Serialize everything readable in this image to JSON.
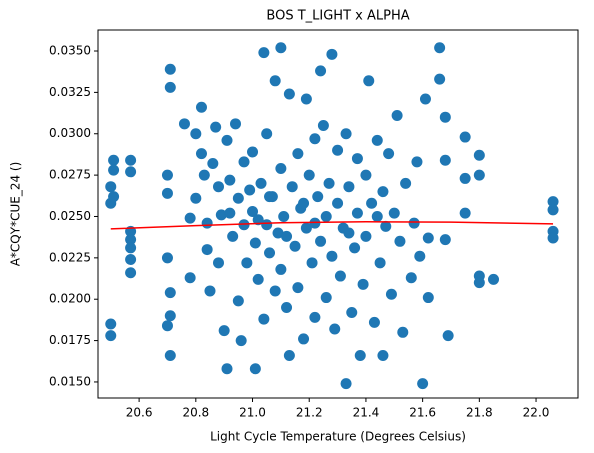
{
  "chart_data": {
    "type": "scatter",
    "title": "BOS T_LIGHT x ALPHA",
    "x_label": "Light Cycle Temperature (Degrees Celsius)",
    "y_label": "A*CQY*CUE_24 ()",
    "xlim": [
      20.455,
      22.148
    ],
    "ylim": [
      0.01403,
      0.03627
    ],
    "xticks": [
      20.6,
      20.8,
      {
        "value": 21.0,
        "label": "21.0"
      },
      21.2,
      21.4,
      21.6,
      21.8,
      {
        "value": 22.0,
        "label": "22.0"
      }
    ],
    "yticks": [
      {
        "value": 0.015,
        "label": "0.0150"
      },
      {
        "value": 0.0175,
        "label": "0.0175"
      },
      {
        "value": 0.02,
        "label": "0.0200"
      },
      {
        "value": 0.0225,
        "label": "0.0225"
      },
      {
        "value": 0.025,
        "label": "0.0250"
      },
      {
        "value": 0.0275,
        "label": "0.0275"
      },
      {
        "value": 0.03,
        "label": "0.0300"
      },
      {
        "value": 0.0325,
        "label": "0.0325"
      },
      {
        "value": 0.035,
        "label": "0.0350"
      }
    ],
    "grid": false,
    "series": [
      {
        "type": "scatter",
        "color": "#1f77b4",
        "x": [
          20.5,
          20.5,
          20.5,
          20.5,
          20.51,
          20.51,
          20.51,
          20.57,
          20.57,
          20.57,
          20.57,
          20.57,
          20.57,
          20.57,
          20.7,
          20.7,
          20.7,
          20.7,
          20.71,
          20.71,
          20.71,
          20.71,
          20.71,
          20.76,
          20.78,
          20.78,
          20.8,
          20.8,
          20.82,
          20.82,
          20.83,
          20.84,
          20.84,
          20.85,
          20.86,
          20.87,
          20.88,
          20.88,
          20.89,
          20.9,
          20.91,
          20.91,
          20.92,
          20.93,
          20.94,
          20.95,
          20.95,
          20.96,
          20.97,
          20.97,
          20.98,
          20.99,
          21.0,
          21.0,
          21.01,
          21.01,
          21.02,
          21.03,
          21.04,
          21.04,
          21.05,
          21.05,
          21.06,
          21.07,
          21.08,
          21.08,
          21.09,
          21.1,
          21.1,
          21.1,
          21.11,
          21.12,
          21.13,
          21.13,
          21.14,
          21.15,
          21.16,
          21.16,
          21.17,
          21.18,
          21.19,
          21.19,
          21.2,
          21.21,
          21.22,
          21.22,
          21.23,
          21.24,
          21.24,
          21.25,
          21.26,
          21.26,
          21.27,
          21.28,
          21.28,
          21.29,
          21.3,
          21.3,
          21.31,
          21.32,
          21.33,
          21.33,
          21.34,
          21.35,
          21.36,
          21.37,
          21.37,
          21.38,
          21.39,
          21.4,
          21.4,
          21.41,
          21.42,
          21.43,
          21.44,
          21.45,
          21.46,
          21.46,
          21.47,
          21.48,
          21.49,
          21.5,
          21.51,
          21.52,
          21.53,
          21.54,
          21.56,
          21.57,
          21.58,
          21.59,
          21.6,
          21.61,
          21.62,
          21.62,
          21.66,
          21.66,
          21.68,
          21.68,
          21.68,
          21.69,
          21.75,
          21.75,
          21.75,
          21.8,
          21.8,
          21.8,
          21.8,
          21.85,
          22.06,
          22.06,
          22.06,
          22.06,
          21.02,
          21.06,
          21.12,
          21.18,
          21.22,
          21.34,
          21.44,
          20.92
        ],
        "values": [
          0.0268,
          0.0258,
          0.0185,
          0.0178,
          0.0284,
          0.0278,
          0.0262,
          0.0284,
          0.0277,
          0.0241,
          0.0236,
          0.0231,
          0.0224,
          0.0216,
          0.0275,
          0.0264,
          0.0225,
          0.0184,
          0.0339,
          0.0328,
          0.0204,
          0.019,
          0.0166,
          0.0306,
          0.0249,
          0.0213,
          0.03,
          0.0261,
          0.0316,
          0.0288,
          0.0275,
          0.0246,
          0.023,
          0.0205,
          0.0282,
          0.0304,
          0.0268,
          0.0222,
          0.0251,
          0.0181,
          0.0158,
          0.0296,
          0.0272,
          0.0238,
          0.0306,
          0.0261,
          0.0199,
          0.0175,
          0.0283,
          0.0245,
          0.0222,
          0.0266,
          0.0289,
          0.0253,
          0.0158,
          0.0234,
          0.0212,
          0.027,
          0.0349,
          0.0188,
          0.03,
          0.0245,
          0.0228,
          0.0262,
          0.0332,
          0.0205,
          0.024,
          0.0352,
          0.0279,
          0.0218,
          0.025,
          0.0195,
          0.0166,
          0.0324,
          0.0268,
          0.0232,
          0.0288,
          0.0207,
          0.0255,
          0.0176,
          0.0321,
          0.0243,
          0.0275,
          0.0222,
          0.0297,
          0.0189,
          0.0262,
          0.0338,
          0.0235,
          0.0305,
          0.025,
          0.0201,
          0.027,
          0.0348,
          0.0226,
          0.0182,
          0.0258,
          0.029,
          0.0214,
          0.0243,
          0.0149,
          0.03,
          0.0268,
          0.0192,
          0.0231,
          0.0285,
          0.0252,
          0.0166,
          0.0209,
          0.0275,
          0.0238,
          0.0332,
          0.0258,
          0.0186,
          0.0296,
          0.0222,
          0.0166,
          0.0265,
          0.0244,
          0.0288,
          0.0203,
          0.0252,
          0.0311,
          0.0235,
          0.018,
          0.027,
          0.0213,
          0.0246,
          0.0283,
          0.0226,
          0.0149,
          0.0321,
          0.0237,
          0.0201,
          0.0352,
          0.0333,
          0.031,
          0.0284,
          0.0236,
          0.0178,
          0.0298,
          0.0273,
          0.0252,
          0.0287,
          0.0275,
          0.0214,
          0.021,
          0.0212,
          0.0259,
          0.0254,
          0.0241,
          0.0237,
          0.0248,
          0.0262,
          0.0238,
          0.0258,
          0.0246,
          0.024,
          0.025,
          0.0252
        ]
      },
      {
        "type": "line",
        "color": "#ff0000",
        "x": [
          20.5,
          20.8,
          21.1,
          21.4,
          21.7,
          22.06
        ],
        "values": [
          0.02425,
          0.02445,
          0.02462,
          0.02468,
          0.02466,
          0.02455
        ]
      }
    ]
  }
}
